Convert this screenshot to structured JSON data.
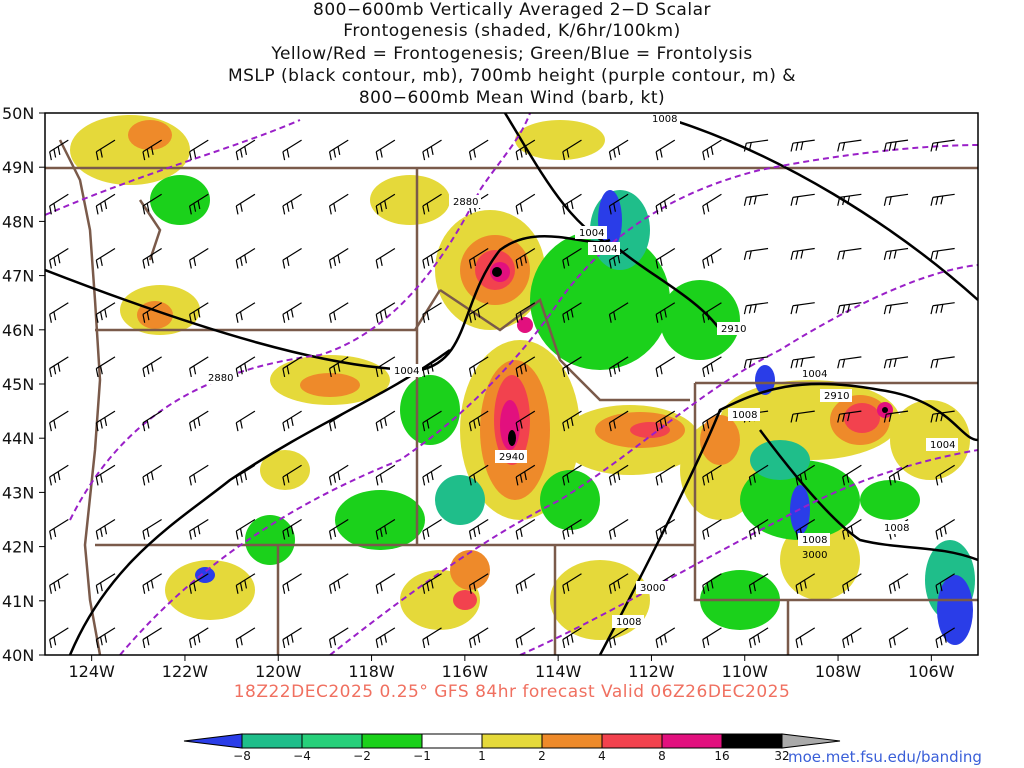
{
  "title": {
    "line1": "800−600mb Vertically Averaged 2−D Scalar",
    "line2": "Frontogenesis (shaded, K/6hr/100km)",
    "line3": "Yellow/Red = Frontogenesis;  Green/Blue = Frontolysis",
    "line4": "MSLP (black contour, mb), 700mb height (purple contour, m) &",
    "line5": "800−600mb Mean Wind (barb, kt)"
  },
  "footer": "18Z22DEC2025 0.25° GFS 84hr forecast Valid 06Z26DEC2025",
  "credit": "moe.met.fsu.edu/banding",
  "map": {
    "lat_range": [
      40,
      50
    ],
    "lon_range": [
      -125,
      -105
    ],
    "lat_ticks": [
      "40N",
      "41N",
      "42N",
      "43N",
      "44N",
      "45N",
      "46N",
      "47N",
      "48N",
      "49N",
      "50N"
    ],
    "lon_ticks": [
      "124W",
      "122W",
      "120W",
      "118W",
      "116W",
      "114W",
      "112W",
      "110W",
      "108W",
      "106W"
    ],
    "mslp_labels": [
      "1004",
      "1004",
      "1004",
      "1004",
      "1008",
      "1008",
      "1008",
      "1008",
      "1008",
      "1004"
    ],
    "height_labels": [
      "2880",
      "2880",
      "2910",
      "2910",
      "2940",
      "3000",
      "3000"
    ]
  },
  "colorbar": {
    "labels": [
      "−8",
      "−4",
      "−2",
      "−1",
      "1",
      "2",
      "4",
      "8",
      "16",
      "32"
    ],
    "colors": [
      "#2a3de8",
      "#1fbe8a",
      "#27d07a",
      "#1bd11b",
      "#ffffff",
      "#e5d93a",
      "#ee8a2a",
      "#f2424e",
      "#e2107e",
      "#000000",
      "#aaaaaa"
    ]
  },
  "colors": {
    "state_borders": "#7a5a4a",
    "mslp": "#000000",
    "height": "#9a20c8",
    "footer": "#f07060"
  }
}
